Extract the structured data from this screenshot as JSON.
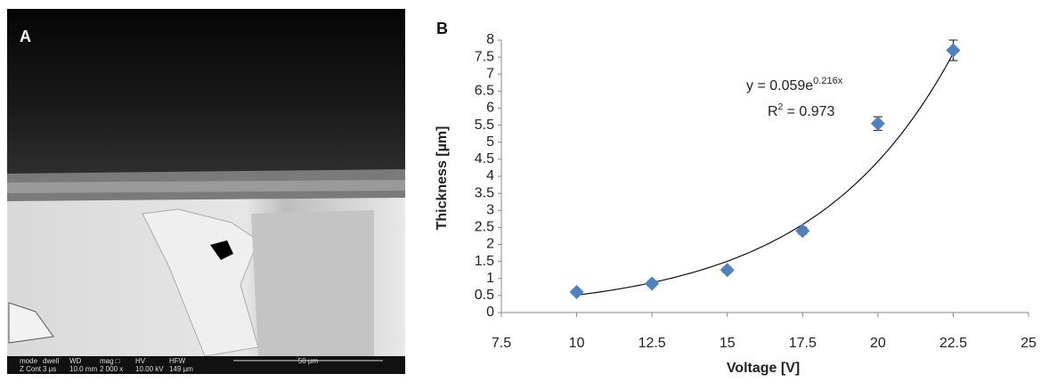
{
  "panel_a": {
    "label": "A",
    "info_bar": {
      "headers": [
        "mode",
        "dwell",
        "WD",
        "mag □",
        "HV",
        "HFW"
      ],
      "values": [
        "Z Cont",
        "3 µs",
        "10.0 mm",
        "2 000 x",
        "10.00 kV",
        "149 µm"
      ],
      "scale_bar": "50 µm"
    }
  },
  "chart_data": {
    "type": "scatter",
    "panel_label": "B",
    "x_label": "Voltage [V]",
    "y_label": "Thickness [µm]",
    "x": [
      10,
      12.5,
      15,
      17.5,
      20,
      22.5
    ],
    "series": [
      {
        "color": "#4f81bd",
        "values": [
          0.6,
          0.85,
          1.25,
          2.4,
          5.55,
          7.7
        ],
        "errors": [
          0.05,
          0.08,
          0.08,
          0.1,
          0.2,
          0.3
        ]
      }
    ],
    "trendline": {
      "a": 0.059,
      "b": 0.216,
      "equation_base": "y = 0.059e",
      "equation_exponent": "0.216x",
      "r2_base": "R",
      "r2_sup": "2",
      "r2_rest": " = 0.973"
    },
    "xlim": [
      7.5,
      25
    ],
    "xticks": [
      7.5,
      10,
      12.5,
      15,
      17.5,
      20,
      22.5,
      25
    ],
    "ylim": [
      0,
      8
    ],
    "yticks": [
      0,
      0.5,
      1,
      1.5,
      2,
      2.5,
      3,
      3.5,
      4,
      4.5,
      5,
      5.5,
      6,
      6.5,
      7,
      7.5,
      8
    ]
  }
}
